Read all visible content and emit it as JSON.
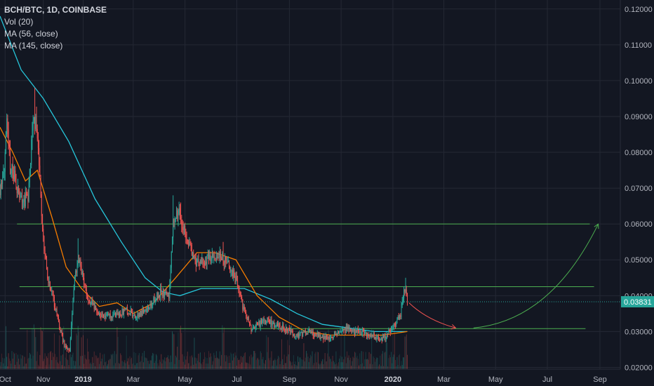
{
  "legend": {
    "title": "BCH/BTC, 1D, COINBASE",
    "indicators": [
      "Vol (20)",
      "MA (56, close)",
      "MA (145, close)"
    ]
  },
  "colors": {
    "background": "#131722",
    "grid": "#242834",
    "up": "#26a69a",
    "down": "#ef5350",
    "ma56": "#f57c00",
    "ma145": "#26c6da",
    "level": "#4caf50",
    "projection_down": "#ef5350",
    "projection_up": "#4caf50",
    "price_label": "#26a69a",
    "axis_text": "#b2b5be"
  },
  "chart_data": {
    "type": "candlestick",
    "symbol": "BCH/BTC",
    "interval": "1D",
    "exchange": "COINBASE",
    "x_ticks": [
      "Oct",
      "Nov",
      "2019",
      "Mar",
      "May",
      "Jul",
      "Sep",
      "Nov",
      "2020",
      "Mar",
      "May",
      "Jul",
      "Sep"
    ],
    "x_tick_dates": [
      "2018-10-01",
      "2018-11-15",
      "2019-01-01",
      "2019-03-01",
      "2019-05-01",
      "2019-07-01",
      "2019-09-01",
      "2019-11-01",
      "2020-01-01",
      "2020-03-01",
      "2020-05-01",
      "2020-07-01",
      "2020-09-01"
    ],
    "y_ticks": [
      "0.12000",
      "0.11000",
      "0.10000",
      "0.09000",
      "0.08000",
      "0.07000",
      "0.06000",
      "0.05000",
      "0.04000",
      "0.03000",
      "0.02000"
    ],
    "ylim": [
      0.0195,
      0.1225
    ],
    "xlim": [
      "2018-09-25",
      "2020-09-25"
    ],
    "current_price": "0.03831",
    "current_price_value": 0.03831,
    "price_anchors": [
      [
        "2018-09-25",
        0.07
      ],
      [
        "2018-10-01",
        0.078
      ],
      [
        "2018-10-03",
        0.088
      ],
      [
        "2018-10-07",
        0.076
      ],
      [
        "2018-10-12",
        0.073
      ],
      [
        "2018-10-18",
        0.068
      ],
      [
        "2018-10-28",
        0.066
      ],
      [
        "2018-11-02",
        0.086
      ],
      [
        "2018-11-06",
        0.09
      ],
      [
        "2018-11-10",
        0.078
      ],
      [
        "2018-11-14",
        0.058
      ],
      [
        "2018-11-20",
        0.045
      ],
      [
        "2018-11-26",
        0.04
      ],
      [
        "2018-12-03",
        0.032
      ],
      [
        "2018-12-10",
        0.026
      ],
      [
        "2018-12-16",
        0.025
      ],
      [
        "2018-12-22",
        0.045
      ],
      [
        "2018-12-27",
        0.05
      ],
      [
        "2019-01-05",
        0.04
      ],
      [
        "2019-01-20",
        0.035
      ],
      [
        "2019-02-05",
        0.034
      ],
      [
        "2019-02-20",
        0.036
      ],
      [
        "2019-03-05",
        0.034
      ],
      [
        "2019-03-20",
        0.037
      ],
      [
        "2019-04-02",
        0.041
      ],
      [
        "2019-04-12",
        0.04
      ],
      [
        "2019-04-17",
        0.062
      ],
      [
        "2019-04-24",
        0.063
      ],
      [
        "2019-05-05",
        0.055
      ],
      [
        "2019-05-15",
        0.049
      ],
      [
        "2019-05-25",
        0.05
      ],
      [
        "2019-06-10",
        0.052
      ],
      [
        "2019-06-25",
        0.047
      ],
      [
        "2019-07-01",
        0.044
      ],
      [
        "2019-07-08",
        0.037
      ],
      [
        "2019-07-18",
        0.031
      ],
      [
        "2019-08-05",
        0.033
      ],
      [
        "2019-08-25",
        0.031
      ],
      [
        "2019-09-10",
        0.029
      ],
      [
        "2019-09-25",
        0.03
      ],
      [
        "2019-10-10",
        0.028
      ],
      [
        "2019-10-25",
        0.029
      ],
      [
        "2019-11-10",
        0.031
      ],
      [
        "2019-11-20",
        0.03
      ],
      [
        "2019-12-05",
        0.029
      ],
      [
        "2019-12-20",
        0.028
      ],
      [
        "2020-01-01",
        0.031
      ],
      [
        "2020-01-10",
        0.035
      ],
      [
        "2020-01-15",
        0.042
      ],
      [
        "2020-01-18",
        0.038
      ]
    ],
    "spikes": [
      [
        "2018-11-05",
        0.098
      ],
      [
        "2018-11-13",
        0.061
      ],
      [
        "2018-12-26",
        0.056
      ],
      [
        "2019-04-17",
        0.068
      ],
      [
        "2019-04-26",
        0.066
      ],
      [
        "2019-06-15",
        0.055
      ],
      [
        "2020-01-16",
        0.045
      ]
    ],
    "ma56": [
      [
        "2018-09-25",
        0.087
      ],
      [
        "2018-10-10",
        0.08
      ],
      [
        "2018-10-25",
        0.072
      ],
      [
        "2018-11-08",
        0.075
      ],
      [
        "2018-11-25",
        0.062
      ],
      [
        "2018-12-12",
        0.048
      ],
      [
        "2018-12-30",
        0.042
      ],
      [
        "2019-01-20",
        0.037
      ],
      [
        "2019-02-10",
        0.038
      ],
      [
        "2019-03-01",
        0.035
      ],
      [
        "2019-03-25",
        0.038
      ],
      [
        "2019-04-20",
        0.045
      ],
      [
        "2019-05-15",
        0.052
      ],
      [
        "2019-06-05",
        0.052
      ],
      [
        "2019-06-30",
        0.05
      ],
      [
        "2019-07-25",
        0.04
      ],
      [
        "2019-08-20",
        0.034
      ],
      [
        "2019-09-20",
        0.03
      ],
      [
        "2019-10-20",
        0.029
      ],
      [
        "2019-11-20",
        0.029
      ],
      [
        "2019-12-20",
        0.029
      ],
      [
        "2020-01-18",
        0.03
      ]
    ],
    "ma145": [
      [
        "2018-09-25",
        0.118
      ],
      [
        "2018-10-20",
        0.103
      ],
      [
        "2018-11-15",
        0.095
      ],
      [
        "2018-12-15",
        0.083
      ],
      [
        "2019-01-15",
        0.067
      ],
      [
        "2019-02-15",
        0.055
      ],
      [
        "2019-03-15",
        0.045
      ],
      [
        "2019-04-05",
        0.041
      ],
      [
        "2019-04-25",
        0.04
      ],
      [
        "2019-05-20",
        0.042
      ],
      [
        "2019-06-20",
        0.042
      ],
      [
        "2019-07-10",
        0.042
      ],
      [
        "2019-08-10",
        0.039
      ],
      [
        "2019-09-10",
        0.035
      ],
      [
        "2019-10-10",
        0.032
      ],
      [
        "2019-11-10",
        0.031
      ],
      [
        "2019-12-10",
        0.03
      ],
      [
        "2020-01-18",
        0.03
      ]
    ],
    "volume_level": [
      0.2,
      0.4
    ],
    "levels": [
      {
        "value": 0.06,
        "start": "2018-10-15",
        "end": "2020-08-20"
      },
      {
        "value": 0.0425,
        "start": "2018-10-18",
        "end": "2020-08-25"
      },
      {
        "value": 0.0308,
        "start": "2018-10-18",
        "end": "2020-08-15"
      }
    ],
    "projections": [
      {
        "kind": "down",
        "points": [
          [
            "2020-01-20",
            0.038
          ],
          [
            "2020-02-10",
            0.0332
          ],
          [
            "2020-03-15",
            0.031
          ]
        ],
        "arrow": true
      },
      {
        "kind": "up",
        "points": [
          [
            "2020-04-05",
            0.031
          ],
          [
            "2020-07-05",
            0.033
          ],
          [
            "2020-08-30",
            0.06
          ]
        ],
        "arrow": true
      }
    ]
  }
}
